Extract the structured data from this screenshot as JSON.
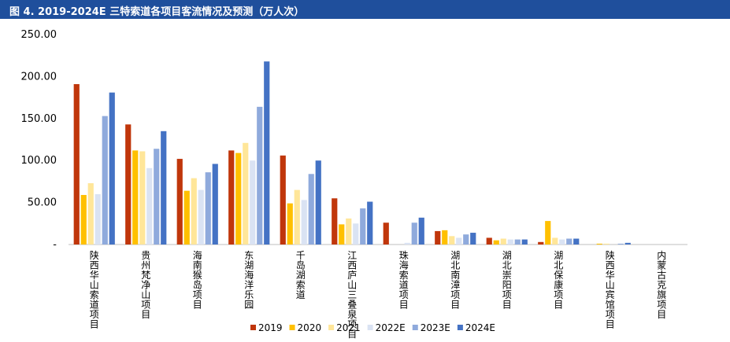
{
  "header": {
    "title": "图 4. 2019-2024E 三特索道各项目客流情况及预测（万人次）"
  },
  "colors": [
    "#c0360b",
    "#ffc000",
    "#ffe699",
    "#dae3f3",
    "#8faadc",
    "#4472c4"
  ],
  "chart_data": {
    "type": "bar",
    "title": "图 4. 2019-2024E 三特索道各项目客流情况及预测（万人次）",
    "xlabel": "",
    "ylabel": "",
    "ylim": [
      0,
      250
    ],
    "y_ticks": [
      "250.00",
      "200.00",
      "150.00",
      "100.00",
      "50.00",
      "-"
    ],
    "legend_position": "bottom",
    "grid": false,
    "categories": [
      "陕西华山索道项目",
      "贵州梵净山项目",
      "海南猴岛项目",
      "东湖海洋乐园",
      "千岛湖索道",
      "江西庐山三叠泉项目",
      "珠海索道项目",
      "湖北南漳项目",
      "湖北崇阳项目",
      "湖北保康项目",
      "陕西华山宾馆项目",
      "内蒙古克旗项目"
    ],
    "series": [
      {
        "name": "2019",
        "values": [
          191,
          143,
          102,
          112,
          106,
          55,
          26,
          16,
          8,
          3,
          0,
          0
        ]
      },
      {
        "name": "2020",
        "values": [
          59,
          112,
          64,
          109,
          49,
          24,
          0,
          17,
          5,
          28,
          1,
          0
        ]
      },
      {
        "name": "2021",
        "values": [
          73,
          111,
          79,
          121,
          65,
          31,
          0,
          10,
          7,
          8,
          1,
          0
        ]
      },
      {
        "name": "2022E",
        "values": [
          60,
          91,
          65,
          100,
          53,
          25,
          2,
          8,
          6,
          6,
          0,
          0
        ]
      },
      {
        "name": "2023E",
        "values": [
          153,
          114,
          86,
          164,
          84,
          43,
          26,
          12,
          6,
          7,
          1,
          0
        ]
      },
      {
        "name": "2024E",
        "values": [
          181,
          135,
          96,
          218,
          100,
          51,
          32,
          14,
          6,
          7,
          2,
          0
        ]
      }
    ]
  }
}
